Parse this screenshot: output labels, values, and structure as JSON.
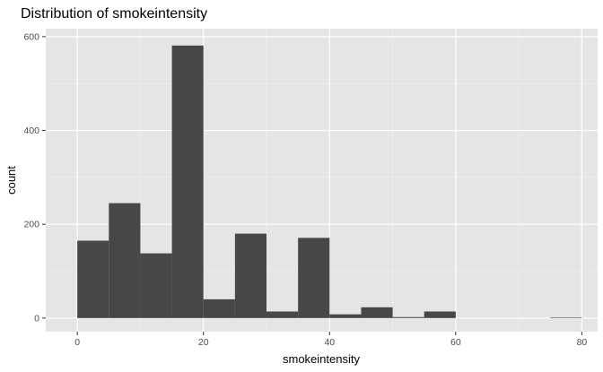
{
  "chart_data": {
    "type": "histogram",
    "title": "Distribution of smokeintensity",
    "xlabel": "smokeintensity",
    "ylabel": "count",
    "xlim": [
      -5,
      82.5
    ],
    "ylim": [
      -29,
      617
    ],
    "x_ticks": [
      0,
      20,
      40,
      60,
      80
    ],
    "y_ticks": [
      0,
      200,
      400,
      600
    ],
    "bin_width": 5,
    "bins": [
      {
        "start": 0,
        "end": 5,
        "count": 165
      },
      {
        "start": 5,
        "end": 10,
        "count": 245
      },
      {
        "start": 10,
        "end": 15,
        "count": 138
      },
      {
        "start": 15,
        "end": 20,
        "count": 581
      },
      {
        "start": 20,
        "end": 25,
        "count": 40
      },
      {
        "start": 25,
        "end": 30,
        "count": 180
      },
      {
        "start": 30,
        "end": 35,
        "count": 14
      },
      {
        "start": 35,
        "end": 40,
        "count": 171
      },
      {
        "start": 40,
        "end": 45,
        "count": 8
      },
      {
        "start": 45,
        "end": 50,
        "count": 23
      },
      {
        "start": 50,
        "end": 55,
        "count": 2
      },
      {
        "start": 55,
        "end": 60,
        "count": 14
      },
      {
        "start": 60,
        "end": 65,
        "count": 0
      },
      {
        "start": 65,
        "end": 70,
        "count": 0
      },
      {
        "start": 70,
        "end": 75,
        "count": 0
      },
      {
        "start": 75,
        "end": 80,
        "count": 1
      }
    ],
    "grid": true,
    "colors": {
      "panel_background": "#e5e5e5",
      "grid_major": "#ffffff",
      "grid_minor": "#f2f2f2",
      "bar_fill": "#474747",
      "tick_text": "#4d4d4d"
    }
  }
}
